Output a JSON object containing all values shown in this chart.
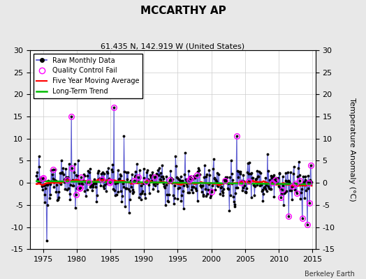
{
  "title": "MCCARTHY AP",
  "subtitle": "61.435 N, 142.919 W (United States)",
  "ylabel": "Temperature Anomaly (°C)",
  "credit": "Berkeley Earth",
  "xlim": [
    1973.0,
    2015.5
  ],
  "ylim": [
    -15,
    30
  ],
  "yticks": [
    -15,
    -10,
    -5,
    0,
    5,
    10,
    15,
    20,
    25,
    30
  ],
  "xticks": [
    1975,
    1980,
    1985,
    1990,
    1995,
    2000,
    2005,
    2010,
    2015
  ],
  "line_color": "#4444cc",
  "marker_color": "#000000",
  "qc_color": "#ff00ff",
  "moving_avg_color": "#ff0000",
  "trend_color": "#00bb00",
  "background_color": "#e8e8e8",
  "plot_background": "#ffffff",
  "figsize": [
    5.24,
    4.0
  ],
  "dpi": 100
}
